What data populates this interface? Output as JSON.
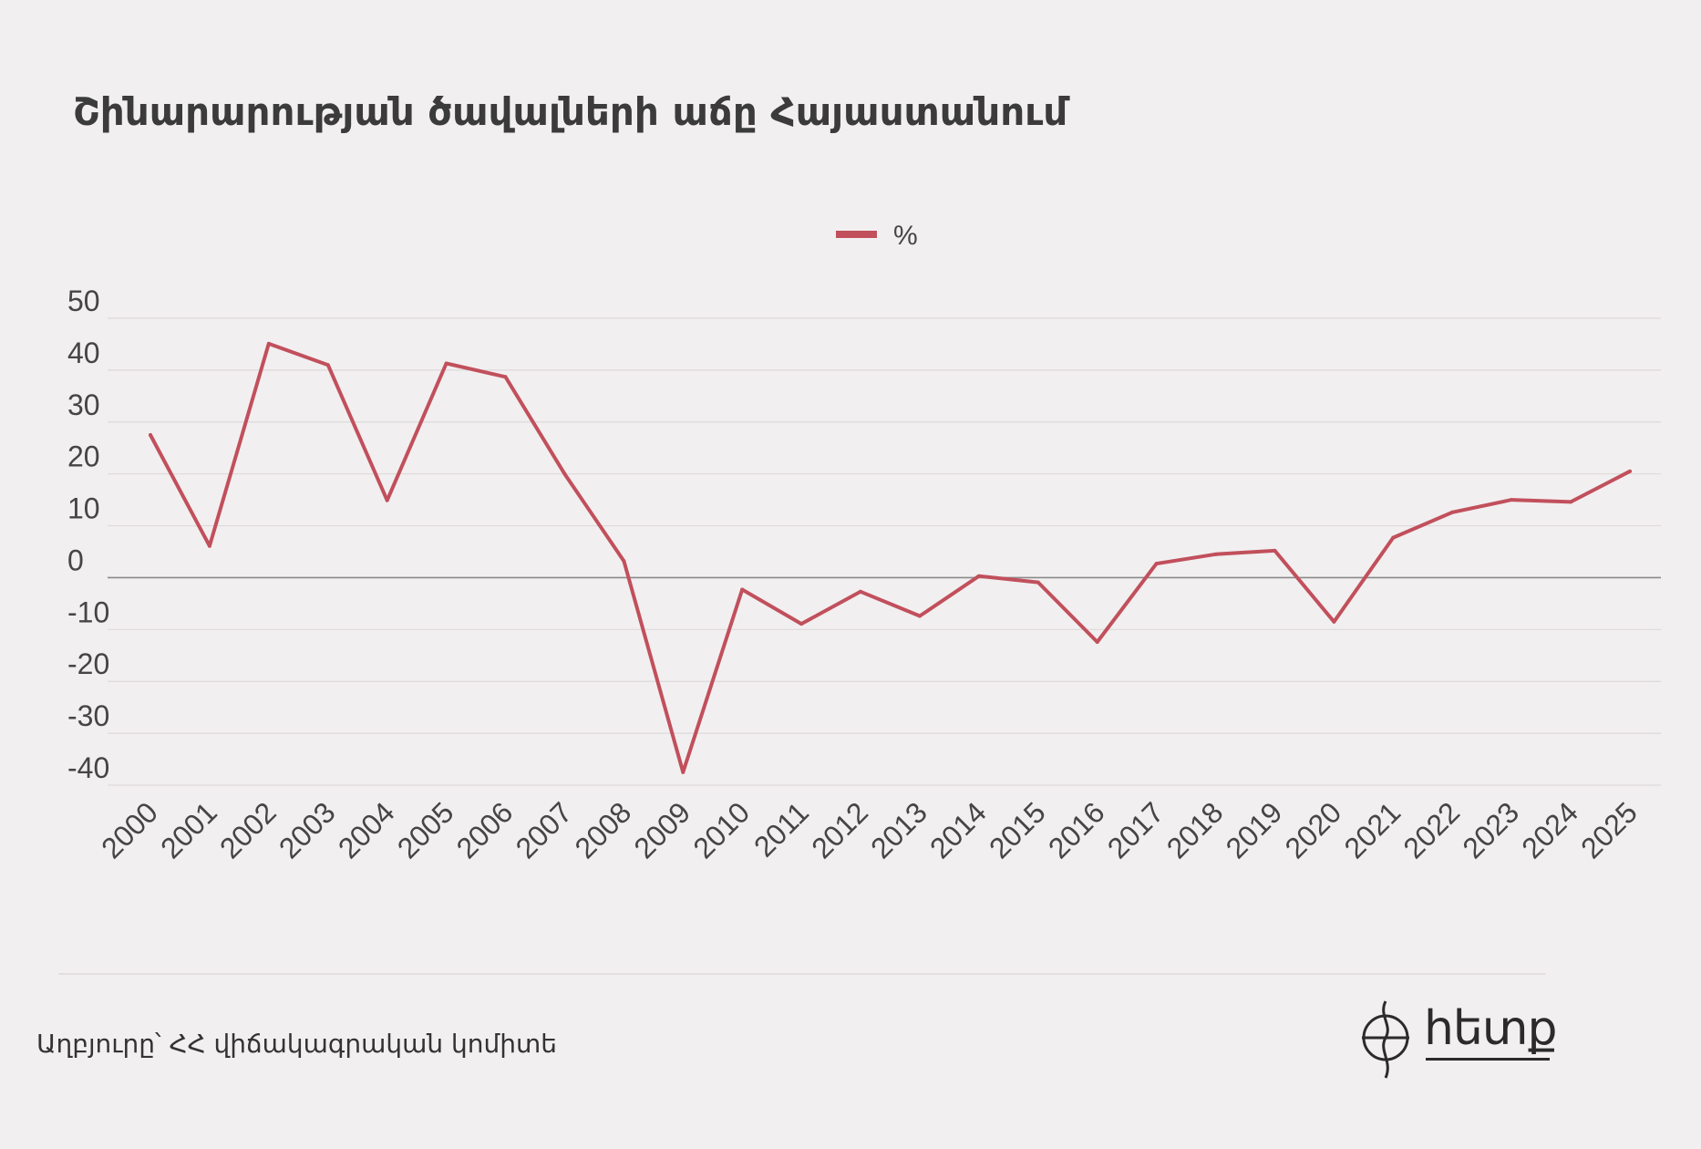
{
  "title": "Շինարարության ծավալների աճը Հայաստանում",
  "source": "Աղբյուրը՝ ՀՀ վիճակագրական կոմիտե",
  "logo_text": "հետք",
  "colors": {
    "series": "#c1505c",
    "grid": "#dedada",
    "zero_line": "#8a8a8a",
    "background": "#f2eff0"
  },
  "chart_data": {
    "type": "line",
    "title": "Շինարարության ծավալների աճը Հայաստանում",
    "xlabel": "",
    "ylabel": "",
    "categories": [
      "2000",
      "2001",
      "2002",
      "2003",
      "2004",
      "2005",
      "2006",
      "2007",
      "2008",
      "2009",
      "2010",
      "2011",
      "2012",
      "2013",
      "2014",
      "2015",
      "2016",
      "2017",
      "2018",
      "2019",
      "2020",
      "2021",
      "2022",
      "2023",
      "2024",
      "2025"
    ],
    "series": [
      {
        "name": "%",
        "values": [
          27.5,
          6.1,
          45.1,
          41.0,
          14.9,
          41.3,
          38.7,
          20.0,
          3.2,
          -37.5,
          -2.3,
          -8.9,
          -2.7,
          -7.4,
          0.3,
          -0.9,
          -12.4,
          2.7,
          4.5,
          5.2,
          -8.5,
          7.7,
          12.6,
          15.0,
          14.6,
          20.5
        ]
      }
    ],
    "yticks": [
      50,
      40,
      30,
      20,
      10,
      0,
      -10,
      -20,
      -30,
      -40
    ],
    "ylim": [
      -40,
      50
    ],
    "grid": true,
    "legend": "top-center"
  }
}
